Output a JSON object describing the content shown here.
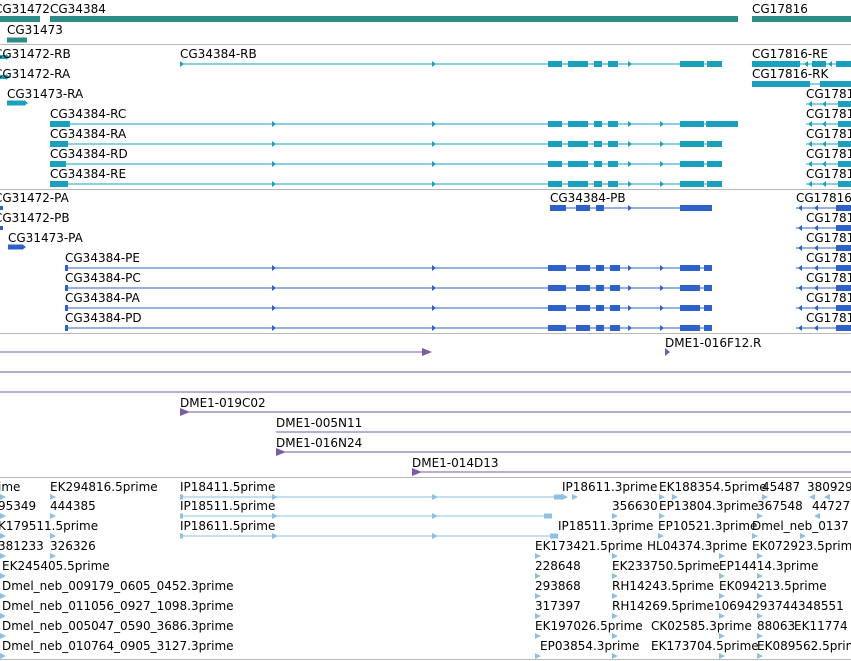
{
  "colors": {
    "gene": "#2e8b88",
    "transcript": "#1aa0bc",
    "protein": "#2f62c8",
    "clone": "#7b5aa6",
    "est": "#8ec0e2",
    "divider": "#b8b8b8"
  },
  "tracks": {
    "genes": {
      "items": [
        {
          "label": "CG31472"
        },
        {
          "label": "CG34384"
        },
        {
          "label": "CG17816"
        },
        {
          "label": "CG31473"
        }
      ]
    },
    "transcripts": {
      "items": [
        {
          "label": "CG31472-RB"
        },
        {
          "label": "CG34384-RB"
        },
        {
          "label": "CG17816-RE"
        },
        {
          "label": "CG31472-RA"
        },
        {
          "label": "CG17816-RK"
        },
        {
          "label": "CG31473-RA"
        },
        {
          "label": "CG34384-RC"
        },
        {
          "label": "CG34384-RA"
        },
        {
          "label": "CG34384-RD"
        },
        {
          "label": "CG34384-RE"
        },
        {
          "label": "CG1781"
        },
        {
          "label": "CG1781"
        },
        {
          "label": "CG1781"
        },
        {
          "label": "CG1781"
        },
        {
          "label": "CG1781"
        }
      ]
    },
    "proteins": {
      "items": [
        {
          "label": "CG31472-PA"
        },
        {
          "label": "CG34384-PB"
        },
        {
          "label": "CG17816"
        },
        {
          "label": "CG31472-PB"
        },
        {
          "label": "CG31473-PA"
        },
        {
          "label": "CG34384-PE"
        },
        {
          "label": "CG34384-PC"
        },
        {
          "label": "CG34384-PA"
        },
        {
          "label": "CG34384-PD"
        },
        {
          "label": "CG1781"
        },
        {
          "label": "CG1781"
        },
        {
          "label": "CG1781"
        },
        {
          "label": "CG1781"
        },
        {
          "label": "CG1781"
        },
        {
          "label": "CG1781"
        }
      ]
    },
    "clones": {
      "items": [
        {
          "label": "DME1-016F12.R"
        },
        {
          "label": "DME1-019C02"
        },
        {
          "label": "DME1-005N11"
        },
        {
          "label": "DME1-016N24"
        },
        {
          "label": "DME1-014D13"
        }
      ]
    },
    "ests": {
      "items": [
        {
          "label": "ime"
        },
        {
          "label": "EK294816.5prime"
        },
        {
          "label": "IP18411.5prime"
        },
        {
          "label": "IP18611.3prime"
        },
        {
          "label": "EK188354.5prime"
        },
        {
          "label": "45487"
        },
        {
          "label": "380929"
        },
        {
          "label": "95349"
        },
        {
          "label": "444385"
        },
        {
          "label": "IP18511.5prime"
        },
        {
          "label": "356630"
        },
        {
          "label": "EP13804.3prime"
        },
        {
          "label": "367548"
        },
        {
          "label": "44727"
        },
        {
          "label": "K179511.5prime"
        },
        {
          "label": "IP18611.5prime"
        },
        {
          "label": "IP18511.3prime"
        },
        {
          "label": "EP10521.3prime"
        },
        {
          "label": "Dmel_neb_0137"
        },
        {
          "label": "381233"
        },
        {
          "label": "326326"
        },
        {
          "label": "EK173421.5prime"
        },
        {
          "label": "HL04374.3prime"
        },
        {
          "label": "EK072923.5prime"
        },
        {
          "label": "EK245405.5prime"
        },
        {
          "label": "228648"
        },
        {
          "label": "EK233750.5prime"
        },
        {
          "label": "EP14414.3prime"
        },
        {
          "label": "Dmel_neb_009179_0605_0452.3prime"
        },
        {
          "label": "293868"
        },
        {
          "label": "RH14243.5prime"
        },
        {
          "label": "EK094213.5prime"
        },
        {
          "label": "Dmel_neb_011056_0927_1098.3prime"
        },
        {
          "label": "317397"
        },
        {
          "label": "RH14269.5prime"
        },
        {
          "label": "10694293744348551"
        },
        {
          "label": "Dmel_neb_005047_0590_3686.3prime"
        },
        {
          "label": "EK197026.5prime"
        },
        {
          "label": "CK02585.3prime"
        },
        {
          "label": "88063"
        },
        {
          "label": "EK11774"
        },
        {
          "label": "Dmel_neb_010764_0905_3127.3prime"
        },
        {
          "label": "EP03854.3prime"
        },
        {
          "label": "EK173704.5prime"
        },
        {
          "label": "EK089562.5prime"
        }
      ]
    }
  }
}
